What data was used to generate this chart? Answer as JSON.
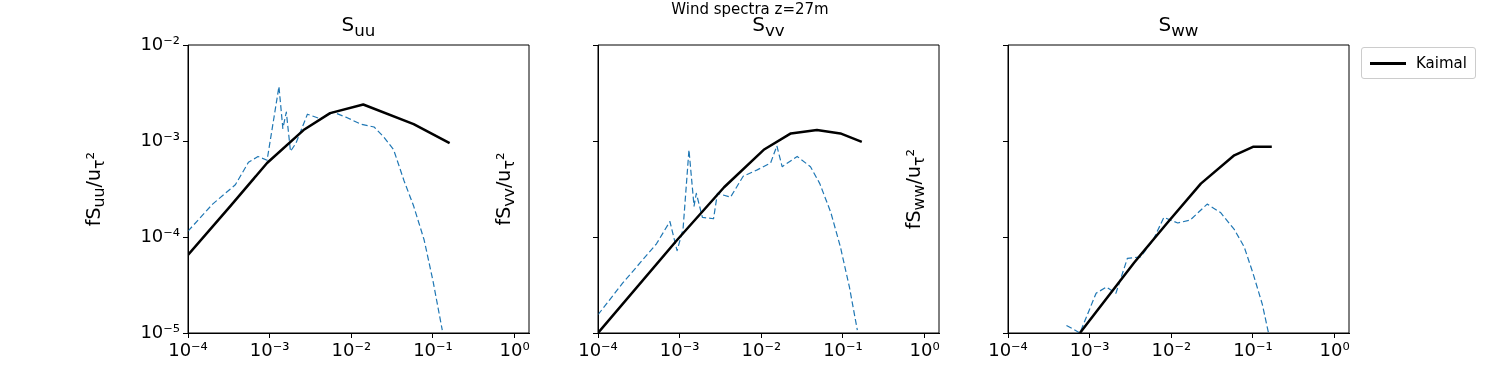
{
  "chart_data": [
    {
      "type": "line",
      "title": "S$_{uu}$",
      "ylabel": "fS$_{uu}$/u$_{τ}$²",
      "log": "xy",
      "grid": false,
      "marker": "none",
      "xlim": [
        0.0001,
        1.5
      ],
      "ylim": [
        1e-05,
        0.01
      ],
      "xticks": [
        {
          "value": 0.0001,
          "label": "10⁻⁴"
        },
        {
          "value": 0.001,
          "label": "10⁻³"
        },
        {
          "value": 0.01,
          "label": "10⁻²"
        },
        {
          "value": 0.1,
          "label": "10⁻¹"
        },
        {
          "value": 1,
          "label": "10⁰"
        }
      ],
      "yticks": [
        {
          "value": 1e-05,
          "label": "10⁻⁵"
        },
        {
          "value": 0.0001,
          "label": "10⁻⁴"
        },
        {
          "value": 0.001,
          "label": "10⁻³"
        },
        {
          "value": 0.01,
          "label": "10⁻²"
        }
      ],
      "series": [
        {
          "color": "#000000",
          "line_style": "solid",
          "x": [
            0.0001,
            0.00033,
            0.00093,
            0.0026,
            0.0055,
            0.014,
            0.058,
            0.16
          ],
          "values": [
            6.5e-05,
            0.00021,
            0.00059,
            0.0013,
            0.00195,
            0.0024,
            0.0015,
            0.00095
          ]
        },
        {
          "color": "#1f77b4",
          "line_style": "dashed",
          "x": [
            0.0001,
            0.0002,
            0.00038,
            0.00055,
            0.00072,
            0.00093,
            0.0013,
            0.00145,
            0.0016,
            0.0018,
            0.0021,
            0.0029,
            0.0042,
            0.006,
            0.0089,
            0.013,
            0.019,
            0.025,
            0.033,
            0.044,
            0.058,
            0.078,
            0.1,
            0.13
          ],
          "values": [
            0.000115,
            0.00022,
            0.00035,
            0.0006,
            0.00069,
            0.00063,
            0.0037,
            0.00135,
            0.002,
            0.00078,
            0.00095,
            0.0019,
            0.0017,
            0.002,
            0.00175,
            0.0015,
            0.0014,
            0.0011,
            0.00081,
            0.00039,
            0.00021,
            9.3e-05,
            3.5e-05,
            1.07e-05
          ]
        }
      ]
    },
    {
      "type": "line",
      "title": "S$_{vv}$",
      "subtitle": "Wind spectra z=27m",
      "ylabel": "fS$_{vv}$/u$_{τ}$²",
      "log": "xy",
      "grid": false,
      "marker": "none",
      "tick_labels": "x",
      "xlim": [
        0.0001,
        1.5
      ],
      "ylim": [
        1e-05,
        0.01
      ],
      "xticks": [
        {
          "value": 0.0001,
          "label": "10⁻⁴"
        },
        {
          "value": 0.001,
          "label": "10⁻³"
        },
        {
          "value": 0.01,
          "label": "10⁻²"
        },
        {
          "value": 0.1,
          "label": "10⁻¹"
        },
        {
          "value": 1,
          "label": "10⁰"
        }
      ],
      "yticks": [
        {
          "value": 1e-05,
          "label": null
        },
        {
          "value": 0.0001,
          "label": null
        },
        {
          "value": 0.001,
          "label": null
        },
        {
          "value": 0.01,
          "label": null
        }
      ],
      "series": [
        {
          "color": "#000000",
          "line_style": "solid",
          "x": [
            0.0001,
            0.00093,
            0.0035,
            0.0107,
            0.023,
            0.048,
            0.093,
            0.17
          ],
          "values": [
            1e-05,
            9.3e-05,
            0.00033,
            0.00081,
            0.0012,
            0.0013,
            0.0012,
            0.00098
          ]
        },
        {
          "color": "#1f77b4",
          "line_style": "dashed",
          "x": [
            0.0001,
            0.0002,
            0.00052,
            0.00076,
            0.00093,
            0.0011,
            0.0013,
            0.0015,
            0.0016,
            0.0019,
            0.0026,
            0.0029,
            0.0042,
            0.006,
            0.0089,
            0.013,
            0.0155,
            0.018,
            0.0275,
            0.04,
            0.052,
            0.071,
            0.093,
            0.12,
            0.15
          ],
          "values": [
            1.55e-05,
            3.3e-05,
            8.5e-05,
            0.000145,
            7.2e-05,
            0.00012,
            0.00081,
            0.00021,
            0.000285,
            0.00016,
            0.000155,
            0.000285,
            0.00026,
            0.00043,
            0.0005,
            0.00059,
            0.00089,
            0.00054,
            0.00069,
            0.00054,
            0.00036,
            0.00018,
            7.9e-05,
            3e-05,
            1.07e-05
          ]
        }
      ]
    },
    {
      "type": "line",
      "title": "S$_{ww}$",
      "ylabel": "fS$_{ww}$/u$_{τ}$²",
      "log": "xy",
      "grid": false,
      "marker": "none",
      "tick_labels": "x",
      "legend": "top right",
      "xlim": [
        0.0001,
        1.5
      ],
      "ylim": [
        1e-05,
        0.01
      ],
      "xticks": [
        {
          "value": 0.0001,
          "label": "10⁻⁴"
        },
        {
          "value": 0.001,
          "label": "10⁻³"
        },
        {
          "value": 0.01,
          "label": "10⁻²"
        },
        {
          "value": 0.1,
          "label": "10⁻¹"
        },
        {
          "value": 1,
          "label": "10⁰"
        }
      ],
      "yticks": [
        {
          "value": 1e-05,
          "label": null
        },
        {
          "value": 0.0001,
          "label": null
        },
        {
          "value": 0.001,
          "label": null
        },
        {
          "value": 0.01,
          "label": null
        }
      ],
      "series": [
        {
          "name": "Kaimal",
          "color": "#000000",
          "line_style": "solid",
          "x": [
            0.00076,
            0.0035,
            0.0089,
            0.023,
            0.059,
            0.1,
            0.17
          ],
          "values": [
            1e-05,
            5.4e-05,
            0.00014,
            0.00036,
            0.00071,
            0.00087,
            0.00087
          ]
        },
        {
          "color": "#1f77b4",
          "line_style": "dashed",
          "x": [
            0.00052,
            0.00076,
            0.0012,
            0.0016,
            0.0021,
            0.0029,
            0.0042,
            0.006,
            0.0081,
            0.012,
            0.017,
            0.0275,
            0.04,
            0.059,
            0.078,
            0.1,
            0.13,
            0.155
          ],
          "values": [
            1.2e-05,
            1e-05,
            2.6e-05,
            3e-05,
            2.6e-05,
            6e-05,
            6.2e-05,
            9.3e-05,
            0.00016,
            0.00014,
            0.00015,
            0.00022,
            0.00018,
            0.00012,
            7.9e-05,
            4.2e-05,
            2e-05,
            1e-05
          ]
        }
      ]
    }
  ]
}
